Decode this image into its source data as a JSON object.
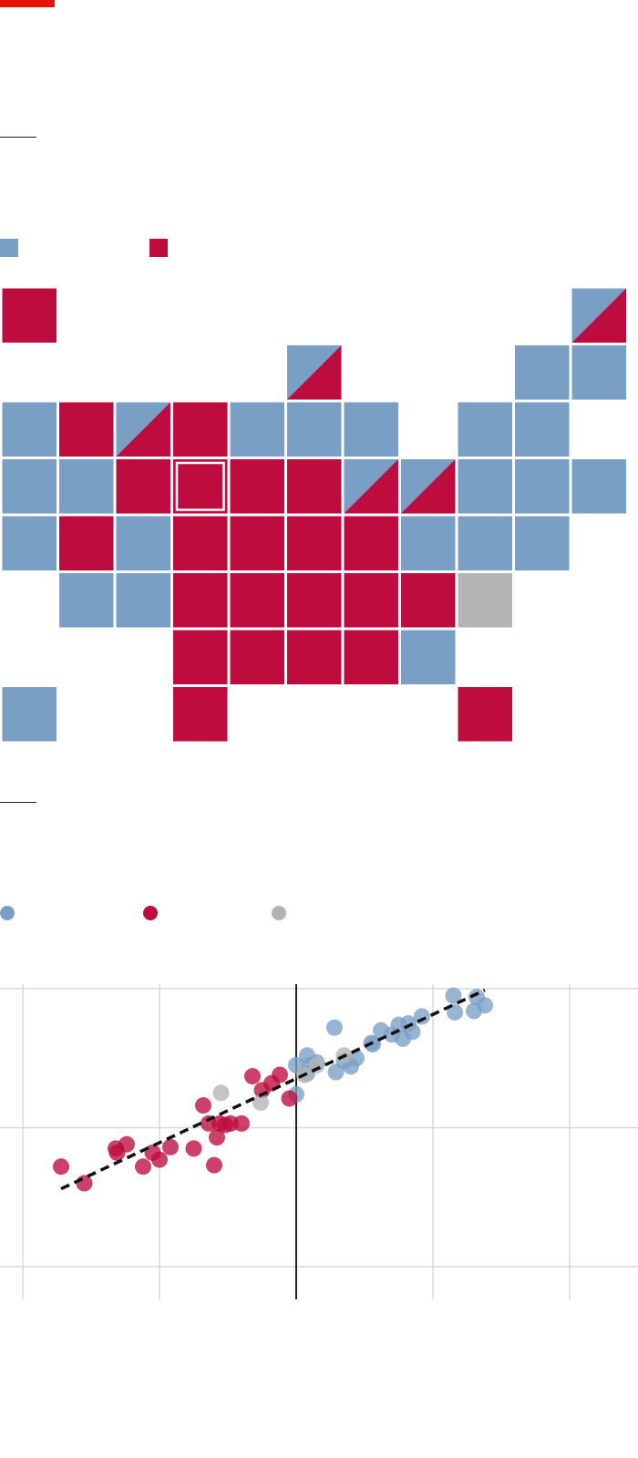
{
  "colors": {
    "brand": "#E3120B",
    "democrat": "#7A9FC5",
    "republican": "#BE0C3E",
    "neutral": "#B3B3B3",
    "tile_border": "#FFFFFF",
    "grid": "#D9D9D9",
    "zero_line": "#222222",
    "trend_line": "#111111"
  },
  "legend": {
    "map_keys": [
      {
        "icon": "square-swatch",
        "color": "#7A9FC5"
      },
      {
        "icon": "square-swatch",
        "color": "#BE0C3E"
      }
    ],
    "scatter_keys": [
      {
        "icon": "circle-swatch",
        "color": "#7A9FC5"
      },
      {
        "icon": "circle-swatch",
        "color": "#BE0C3E"
      },
      {
        "icon": "circle-swatch",
        "color": "#B3B3B3"
      }
    ]
  },
  "tile_map": {
    "columns": 11,
    "rows": 9,
    "tiles": [
      {
        "row": 0,
        "col": 0,
        "fill": "R"
      },
      {
        "row": 0,
        "col": 10,
        "fill": "D",
        "split": "R"
      },
      {
        "row": 1,
        "col": 5,
        "fill": "D",
        "split": "R"
      },
      {
        "row": 1,
        "col": 9,
        "fill": "D"
      },
      {
        "row": 1,
        "col": 10,
        "fill": "D"
      },
      {
        "row": 2,
        "col": 0,
        "fill": "D"
      },
      {
        "row": 2,
        "col": 1,
        "fill": "R"
      },
      {
        "row": 2,
        "col": 2,
        "fill": "D",
        "split": "R"
      },
      {
        "row": 2,
        "col": 3,
        "fill": "R"
      },
      {
        "row": 2,
        "col": 4,
        "fill": "D"
      },
      {
        "row": 2,
        "col": 5,
        "fill": "D"
      },
      {
        "row": 2,
        "col": 6,
        "fill": "D"
      },
      {
        "row": 2,
        "col": 8,
        "fill": "D"
      },
      {
        "row": 2,
        "col": 9,
        "fill": "D"
      },
      {
        "row": 3,
        "col": 0,
        "fill": "D"
      },
      {
        "row": 3,
        "col": 1,
        "fill": "D"
      },
      {
        "row": 3,
        "col": 2,
        "fill": "R"
      },
      {
        "row": 3,
        "col": 3,
        "fill": "R",
        "outlined": true
      },
      {
        "row": 3,
        "col": 4,
        "fill": "R"
      },
      {
        "row": 3,
        "col": 5,
        "fill": "R"
      },
      {
        "row": 3,
        "col": 6,
        "fill": "D",
        "split": "R"
      },
      {
        "row": 3,
        "col": 7,
        "fill": "D",
        "split": "R"
      },
      {
        "row": 3,
        "col": 8,
        "fill": "D"
      },
      {
        "row": 3,
        "col": 9,
        "fill": "D"
      },
      {
        "row": 3,
        "col": 10,
        "fill": "D"
      },
      {
        "row": 4,
        "col": 0,
        "fill": "D"
      },
      {
        "row": 4,
        "col": 1,
        "fill": "R"
      },
      {
        "row": 4,
        "col": 2,
        "fill": "D"
      },
      {
        "row": 4,
        "col": 3,
        "fill": "R"
      },
      {
        "row": 4,
        "col": 4,
        "fill": "R"
      },
      {
        "row": 4,
        "col": 5,
        "fill": "R"
      },
      {
        "row": 4,
        "col": 6,
        "fill": "R"
      },
      {
        "row": 4,
        "col": 7,
        "fill": "D"
      },
      {
        "row": 4,
        "col": 8,
        "fill": "D"
      },
      {
        "row": 4,
        "col": 9,
        "fill": "D"
      },
      {
        "row": 5,
        "col": 1,
        "fill": "D"
      },
      {
        "row": 5,
        "col": 2,
        "fill": "D"
      },
      {
        "row": 5,
        "col": 3,
        "fill": "R"
      },
      {
        "row": 5,
        "col": 4,
        "fill": "R"
      },
      {
        "row": 5,
        "col": 5,
        "fill": "R"
      },
      {
        "row": 5,
        "col": 6,
        "fill": "R"
      },
      {
        "row": 5,
        "col": 7,
        "fill": "R"
      },
      {
        "row": 5,
        "col": 8,
        "fill": "N"
      },
      {
        "row": 6,
        "col": 3,
        "fill": "R"
      },
      {
        "row": 6,
        "col": 4,
        "fill": "R"
      },
      {
        "row": 6,
        "col": 5,
        "fill": "R"
      },
      {
        "row": 6,
        "col": 6,
        "fill": "R"
      },
      {
        "row": 6,
        "col": 7,
        "fill": "D"
      },
      {
        "row": 7,
        "col": 0,
        "fill": "D"
      },
      {
        "row": 7,
        "col": 3,
        "fill": "R"
      },
      {
        "row": 7,
        "col": 8,
        "fill": "R"
      }
    ]
  },
  "chart_data": {
    "type": "scatter",
    "title": "",
    "xlabel": "",
    "ylabel": "",
    "grid": true,
    "xlim": [
      -2.0,
      2.5
    ],
    "ylim": [
      -1.0,
      1.0
    ],
    "x_ticks": [
      -2,
      -1,
      0,
      1,
      2
    ],
    "y_ticks": [
      -1,
      0,
      1
    ],
    "zero_line_x": 0,
    "trend_line": {
      "style": "dashed",
      "x": [
        -1.72,
        1.38
      ],
      "y": [
        -0.44,
        0.99
      ]
    },
    "series": [
      {
        "color": "#7A9FC5",
        "points": [
          [
            0.0,
            0.45
          ],
          [
            0.08,
            0.52
          ],
          [
            0.1,
            0.45
          ],
          [
            0.15,
            0.47
          ],
          [
            0.29,
            0.4
          ],
          [
            0.35,
            0.48
          ],
          [
            0.4,
            0.44
          ],
          [
            0.44,
            0.5
          ],
          [
            0.55,
            0.61
          ],
          [
            0.56,
            0.6
          ],
          [
            0.62,
            0.7
          ],
          [
            0.7,
            0.67
          ],
          [
            0.75,
            0.74
          ],
          [
            0.78,
            0.64
          ],
          [
            0.82,
            0.75
          ],
          [
            0.85,
            0.69
          ],
          [
            0.92,
            0.8
          ],
          [
            1.15,
            0.95
          ],
          [
            1.16,
            0.83
          ],
          [
            1.3,
            0.84
          ],
          [
            1.38,
            0.88
          ],
          [
            1.32,
            0.94
          ],
          [
            0.0,
            0.24
          ],
          [
            0.08,
            0.39
          ],
          [
            0.28,
            0.72
          ]
        ]
      },
      {
        "color": "#BE0C3E",
        "points": [
          [
            -1.72,
            -0.28
          ],
          [
            -1.55,
            -0.4
          ],
          [
            -1.32,
            -0.15
          ],
          [
            -1.31,
            -0.18
          ],
          [
            -1.24,
            -0.12
          ],
          [
            -1.12,
            -0.28
          ],
          [
            -1.05,
            -0.18
          ],
          [
            -1.0,
            -0.23
          ],
          [
            -0.92,
            -0.14
          ],
          [
            -0.75,
            -0.15
          ],
          [
            -0.68,
            0.16
          ],
          [
            -0.64,
            0.03
          ],
          [
            -0.6,
            -0.27
          ],
          [
            -0.58,
            -0.07
          ],
          [
            -0.56,
            0.03
          ],
          [
            -0.52,
            0.02
          ],
          [
            -0.48,
            0.03
          ],
          [
            -0.4,
            0.03
          ],
          [
            -0.32,
            0.37
          ],
          [
            -0.25,
            0.27
          ],
          [
            -0.18,
            0.32
          ],
          [
            -0.12,
            0.38
          ],
          [
            -0.05,
            0.21
          ]
        ]
      },
      {
        "color": "#B3B3B3",
        "points": [
          [
            -0.55,
            0.25
          ],
          [
            -0.26,
            0.18
          ],
          [
            0.06,
            0.38
          ],
          [
            0.15,
            0.45
          ],
          [
            0.35,
            0.52
          ]
        ]
      }
    ]
  }
}
